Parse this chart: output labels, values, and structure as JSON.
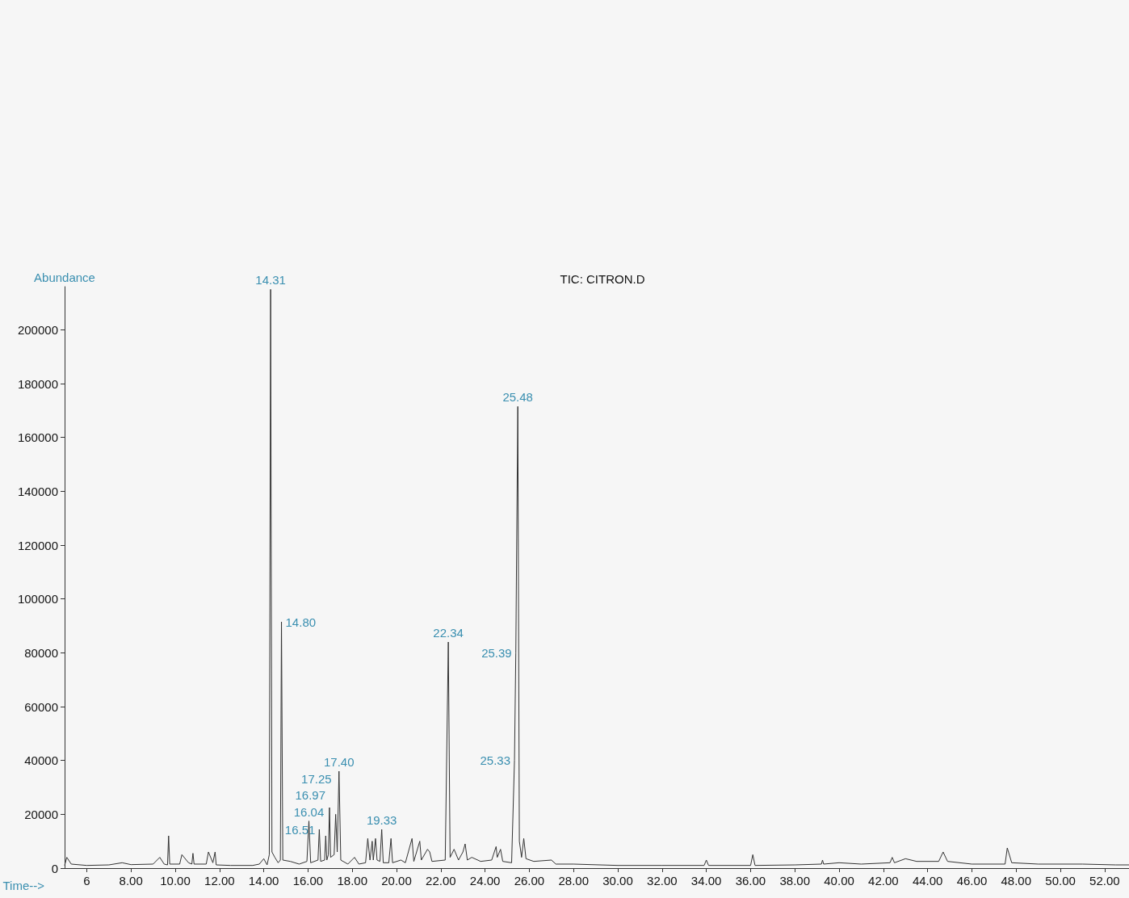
{
  "chart_data": {
    "type": "line",
    "title": "TIC: CITRON.D",
    "xlabel": "Time-->",
    "ylabel": "Abundance",
    "xlim": [
      5,
      53.1
    ],
    "ylim": [
      0,
      216000
    ],
    "xticks": [
      6,
      {
        "value": 8,
        "label": "8.00"
      },
      {
        "value": 10,
        "label": "10.00"
      },
      {
        "value": 12,
        "label": "12.00"
      },
      {
        "value": 14,
        "label": "14.00"
      },
      {
        "value": 16,
        "label": "16.00"
      },
      {
        "value": 18,
        "label": "18.00"
      },
      {
        "value": 20,
        "label": "20.00"
      },
      {
        "value": 22,
        "label": "22.00"
      },
      {
        "value": 24,
        "label": "24.00"
      },
      {
        "value": 26,
        "label": "26.00"
      },
      {
        "value": 28,
        "label": "28.00"
      },
      {
        "value": 30,
        "label": "30.00"
      },
      {
        "value": 32,
        "label": "32.00"
      },
      {
        "value": 34,
        "label": "34.00"
      },
      {
        "value": 36,
        "label": "36.00"
      },
      {
        "value": 38,
        "label": "38.00"
      },
      {
        "value": 40,
        "label": "40.00"
      },
      {
        "value": 42,
        "label": "42.00"
      },
      {
        "value": 44,
        "label": "44.00"
      },
      {
        "value": 46,
        "label": "46.00"
      },
      {
        "value": 48,
        "label": "48.00"
      },
      {
        "value": 50,
        "label": "50.00"
      },
      {
        "value": 52,
        "label": "52.00"
      }
    ],
    "yticks": [
      0,
      20000,
      40000,
      60000,
      80000,
      100000,
      120000,
      140000,
      160000,
      180000,
      200000
    ],
    "grid": false,
    "marker": "none",
    "line_style": "solid",
    "x": [
      5.0,
      5.1,
      5.3,
      6.0,
      7.0,
      7.6,
      8.0,
      9.0,
      9.3,
      9.5,
      9.65,
      9.7,
      9.75,
      10.2,
      10.3,
      10.6,
      10.75,
      10.8,
      10.85,
      11.4,
      11.5,
      11.7,
      11.8,
      11.85,
      12.5,
      13.5,
      13.8,
      14.0,
      14.15,
      14.25,
      14.31,
      14.37,
      14.5,
      14.65,
      14.75,
      14.8,
      14.86,
      15.2,
      15.6,
      15.95,
      16.04,
      16.12,
      16.45,
      16.51,
      16.57,
      16.75,
      16.8,
      16.85,
      16.92,
      16.97,
      17.02,
      17.18,
      17.25,
      17.32,
      17.4,
      17.48,
      17.8,
      18.1,
      18.3,
      18.6,
      18.7,
      18.8,
      18.9,
      18.95,
      19.05,
      19.12,
      19.25,
      19.33,
      19.4,
      19.65,
      19.75,
      19.82,
      20.2,
      20.4,
      20.7,
      20.78,
      21.05,
      21.12,
      21.4,
      21.5,
      21.6,
      22.2,
      22.34,
      22.42,
      22.6,
      22.8,
      23.0,
      23.1,
      23.2,
      23.4,
      23.8,
      24.3,
      24.5,
      24.55,
      24.7,
      24.8,
      25.2,
      25.33,
      25.39,
      25.48,
      25.55,
      25.65,
      25.75,
      25.85,
      26.2,
      27.0,
      27.2,
      28.0,
      30.0,
      32.0,
      33.9,
      34.0,
      34.1,
      36.0,
      36.1,
      36.2,
      38.0,
      39.2,
      39.25,
      39.3,
      40.0,
      41.0,
      42.3,
      42.4,
      42.5,
      43.0,
      43.5,
      44.5,
      44.7,
      44.9,
      46.0,
      47.5,
      47.6,
      47.8,
      49.0,
      51.0,
      52.5,
      53.1
    ],
    "series": [
      {
        "color": "#333333",
        "values": [
          1000,
          4000,
          1500,
          1000,
          1200,
          2000,
          1300,
          1500,
          4000,
          1500,
          1200,
          12000,
          1500,
          1500,
          5000,
          2000,
          1500,
          5500,
          1500,
          1500,
          6000,
          2000,
          6000,
          1200,
          1000,
          1000,
          1500,
          3500,
          1200,
          5000,
          215000,
          6000,
          4000,
          2000,
          3000,
          91500,
          3000,
          2500,
          1500,
          2500,
          17500,
          2000,
          3000,
          14400,
          2500,
          3000,
          12000,
          3000,
          5000,
          22500,
          4000,
          5000,
          20000,
          6000,
          36000,
          3000,
          1500,
          4000,
          1500,
          2000,
          11000,
          3000,
          10000,
          3000,
          11000,
          3000,
          2500,
          14400,
          2000,
          2000,
          11000,
          2000,
          3000,
          2000,
          11000,
          2500,
          10000,
          3000,
          7000,
          6000,
          2500,
          3000,
          84000,
          4000,
          7000,
          3000,
          6000,
          9000,
          3000,
          4000,
          2500,
          3000,
          8000,
          4000,
          7000,
          2500,
          2000,
          40000,
          80000,
          171500,
          10000,
          4000,
          11000,
          3500,
          2500,
          3000,
          1500,
          1500,
          1000,
          1000,
          1000,
          3000,
          1000,
          1000,
          5000,
          1000,
          1200,
          1500,
          3000,
          1500,
          2000,
          1500,
          2000,
          4000,
          2000,
          3500,
          2500,
          2500,
          6000,
          2500,
          1500,
          1500,
          7500,
          2000,
          1500,
          1500,
          1200,
          1200
        ]
      }
    ],
    "annotations": [
      {
        "text": "14.31",
        "x": 14.31,
        "y": 215000
      },
      {
        "text": "14.80",
        "x": 14.8,
        "y": 91500
      },
      {
        "text": "16.04",
        "x": 16.04,
        "y": 17500
      },
      {
        "text": "16.51",
        "x": 16.51,
        "y": 14400
      },
      {
        "text": "16.97",
        "x": 16.97,
        "y": 22500
      },
      {
        "text": "17.25",
        "x": 17.25,
        "y": 20000
      },
      {
        "text": "17.40",
        "x": 17.4,
        "y": 36000
      },
      {
        "text": "19.33",
        "x": 19.33,
        "y": 14400
      },
      {
        "text": "22.34",
        "x": 22.34,
        "y": 84000
      },
      {
        "text": "25.33",
        "x": 25.33,
        "y": 40000
      },
      {
        "text": "25.39",
        "x": 25.39,
        "y": 80000
      },
      {
        "text": "25.48",
        "x": 25.48,
        "y": 171500
      }
    ]
  }
}
